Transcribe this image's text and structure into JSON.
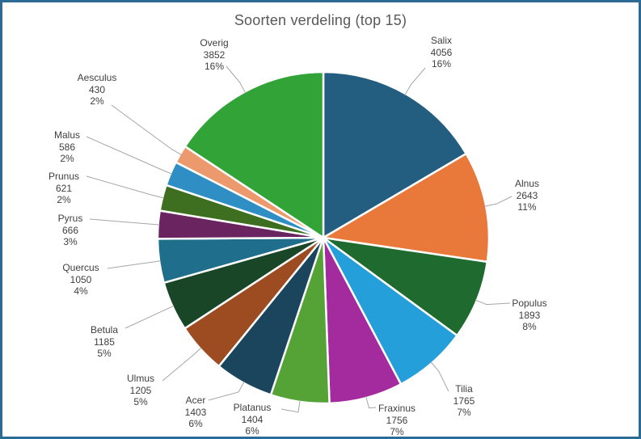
{
  "chart_data": {
    "type": "pie",
    "title": "Soorten verdeling (top 15)",
    "direction": "clockwise",
    "start_angle_deg": 0,
    "legend": "none",
    "data_label_lines": [
      "name",
      "value",
      "percent"
    ],
    "leader_lines": true,
    "series": [
      {
        "name": "Salix",
        "value": 4056,
        "percent_label": "16%",
        "color": "#235D7F"
      },
      {
        "name": "Alnus",
        "value": 2643,
        "percent_label": "11%",
        "color": "#E8793B"
      },
      {
        "name": "Populus",
        "value": 1893,
        "percent_label": "8%",
        "color": "#1F6B2F"
      },
      {
        "name": "Tilia",
        "value": 1765,
        "percent_label": "7%",
        "color": "#259FD9"
      },
      {
        "name": "Fraxinus",
        "value": 1756,
        "percent_label": "7%",
        "color": "#A32B9E"
      },
      {
        "name": "Platanus",
        "value": 1404,
        "percent_label": "6%",
        "color": "#55A337"
      },
      {
        "name": "Acer",
        "value": 1403,
        "percent_label": "6%",
        "color": "#1A455C"
      },
      {
        "name": "Ulmus",
        "value": 1205,
        "percent_label": "5%",
        "color": "#9D4B21"
      },
      {
        "name": "Betula",
        "value": 1185,
        "percent_label": "5%",
        "color": "#1A4628"
      },
      {
        "name": "Quercus",
        "value": 1050,
        "percent_label": "4%",
        "color": "#1F6F8C"
      },
      {
        "name": "Pyrus",
        "value": 666,
        "percent_label": "3%",
        "color": "#6A2460"
      },
      {
        "name": "Prunus",
        "value": 621,
        "percent_label": "2%",
        "color": "#3E6E20"
      },
      {
        "name": "Malus",
        "value": 586,
        "percent_label": "2%",
        "color": "#2F8FC5"
      },
      {
        "name": "Aesculus",
        "value": 430,
        "percent_label": "2%",
        "color": "#EC9A6D"
      },
      {
        "name": "Overig",
        "value": 3852,
        "percent_label": "16%",
        "color": "#31A337"
      }
    ]
  },
  "style": {
    "window_border_color": "#2D6B97",
    "title_color": "#595959",
    "label_color": "#404040",
    "leader_line_color": "#A6A6A6",
    "slice_stroke": "#FFFFFF"
  }
}
